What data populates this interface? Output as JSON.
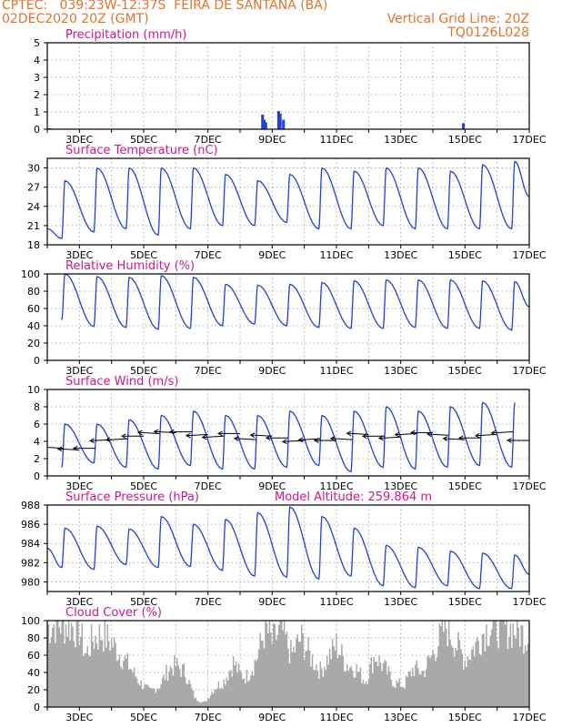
{
  "header": {
    "line1_left": "CPTEC:   039:23W-12:37S  FEIRA DE SANTANA (BA)",
    "line2_left": "02DEC2020 20Z (GMT)",
    "line2_right": "Vertical Grid Line: 20Z",
    "line3_right": "TQ0126L028"
  },
  "colors": {
    "header": "#e8702a",
    "title": "#d6138f",
    "series": "#1f3fe0",
    "cloud": "#a9a9a9",
    "wind_arrow": "#000000",
    "grid": "#9a9a9a"
  },
  "x_tick_labels": [
    "3DEC",
    "5DEC",
    "7DEC",
    "9DEC",
    "11DEC",
    "13DEC",
    "15DEC",
    "17DEC"
  ],
  "chart_data": [
    {
      "id": "precipitation",
      "type": "bar",
      "title": "Precipitation (mm/h)",
      "ylim": [
        0,
        5
      ],
      "yticks": [
        0,
        1,
        2,
        3,
        4,
        5
      ],
      "grid": true,
      "x_unit": "days since 02DEC2020 20Z",
      "bars": [
        {
          "x": 0.05,
          "y": 0.05
        },
        {
          "x": 0.1,
          "y": 0.05
        },
        {
          "x": 6.7,
          "y": 0.85
        },
        {
          "x": 6.75,
          "y": 0.55
        },
        {
          "x": 6.8,
          "y": 0.4
        },
        {
          "x": 7.2,
          "y": 1.05
        },
        {
          "x": 7.25,
          "y": 0.9
        },
        {
          "x": 7.35,
          "y": 0.55
        },
        {
          "x": 12.95,
          "y": 0.35
        }
      ]
    },
    {
      "id": "temperature",
      "type": "line",
      "title": "Surface Temperature (nC)",
      "ylim": [
        18,
        31.5
      ],
      "yticks": [
        18,
        21,
        24,
        27,
        30
      ],
      "grid": true,
      "daily_max": [
        28,
        30,
        30,
        30,
        30,
        29,
        28,
        29,
        30,
        29.5,
        30,
        30,
        29.5,
        30.5,
        31
      ],
      "daily_min": [
        19,
        20,
        20.5,
        19.5,
        20.5,
        21,
        21,
        21.5,
        20.5,
        20.5,
        21,
        20.5,
        20.5,
        20.5,
        20.5,
        20.5
      ],
      "start_value": 20.5,
      "end_value": 25.5
    },
    {
      "id": "humidity",
      "type": "line",
      "title": "Relative Humidity (%)",
      "ylim": [
        0,
        100
      ],
      "yticks": [
        0,
        20,
        40,
        60,
        80,
        100
      ],
      "grid": true,
      "daily_max": [
        100,
        97,
        96,
        98,
        96,
        88,
        87,
        88,
        90,
        92,
        93,
        93,
        93,
        92,
        91,
        92
      ],
      "daily_min": [
        47,
        39,
        38,
        36,
        37,
        40,
        42,
        40,
        38,
        37,
        37,
        38,
        37,
        37,
        35
      ],
      "end_value": 62
    },
    {
      "id": "wind",
      "type": "line",
      "title": "Surface Wind (m/s)",
      "ylim": [
        0,
        10
      ],
      "yticks": [
        0,
        2,
        4,
        6,
        8,
        10
      ],
      "grid": true,
      "daily_max": [
        6,
        6,
        6.5,
        7,
        7.5,
        7,
        7,
        7.5,
        7,
        7.5,
        8,
        7.5,
        8,
        8.5,
        8.5,
        8
      ],
      "daily_min": [
        1,
        1.5,
        1,
        0.8,
        1.2,
        0.8,
        0.8,
        1,
        1.2,
        0.5,
        1,
        0.8,
        1,
        1.2,
        1,
        1
      ],
      "vectors": [
        {
          "x": 0.0,
          "y": 3.5
        },
        {
          "x": 0.5,
          "y": 3.2
        },
        {
          "x": 1.0,
          "y": 3.0
        },
        {
          "x": 1.5,
          "y": 3.2
        },
        {
          "x": 2.0,
          "y": 4.2
        },
        {
          "x": 2.5,
          "y": 4.3
        },
        {
          "x": 3.0,
          "y": 4.6
        },
        {
          "x": 3.5,
          "y": 4.9
        },
        {
          "x": 4.0,
          "y": 5.0
        },
        {
          "x": 4.5,
          "y": 5.1
        },
        {
          "x": 5.0,
          "y": 4.8
        },
        {
          "x": 5.5,
          "y": 4.6
        },
        {
          "x": 6.0,
          "y": 4.9
        },
        {
          "x": 6.5,
          "y": 4.2
        },
        {
          "x": 7.0,
          "y": 4.6
        },
        {
          "x": 7.5,
          "y": 4.4
        },
        {
          "x": 8.0,
          "y": 4.1
        },
        {
          "x": 8.5,
          "y": 4.3
        },
        {
          "x": 9.0,
          "y": 4.1
        },
        {
          "x": 9.5,
          "y": 4.2
        },
        {
          "x": 10.0,
          "y": 4.8
        },
        {
          "x": 10.5,
          "y": 4.6
        },
        {
          "x": 11.0,
          "y": 4.5
        },
        {
          "x": 11.5,
          "y": 4.9
        },
        {
          "x": 12.0,
          "y": 5.0
        },
        {
          "x": 12.5,
          "y": 4.7
        },
        {
          "x": 13.0,
          "y": 4.2
        },
        {
          "x": 13.5,
          "y": 4.4
        },
        {
          "x": 14.0,
          "y": 4.8
        },
        {
          "x": 14.5,
          "y": 5.1
        },
        {
          "x": 15.0,
          "y": 4.1
        }
      ]
    },
    {
      "id": "pressure",
      "type": "line",
      "title": "Surface Pressure (hPa)",
      "subtitle": "Model Altitude: 259.864 m",
      "ylim": [
        979,
        988
      ],
      "yticks": [
        980,
        982,
        984,
        986,
        988
      ],
      "grid": true,
      "daily_max": [
        985.6,
        985.8,
        985.5,
        986.8,
        986,
        986.5,
        987.2,
        987.8,
        986.8,
        985.6,
        983.8,
        983.6,
        983.2,
        983,
        982.8,
        982.6
      ],
      "daily_min": [
        981.5,
        981.3,
        981.8,
        981.5,
        981.6,
        981.2,
        980.6,
        980.5,
        980.3,
        980.6,
        979.6,
        979.4,
        979.6,
        979.3,
        979.3
      ],
      "secondary_peak": 984.2,
      "start_value": 983.5,
      "end_value": 980.8
    },
    {
      "id": "cloud",
      "type": "area",
      "title": "Cloud Cover (%)",
      "ylim": [
        0,
        100
      ],
      "yticks": [
        0,
        20,
        40,
        60,
        80,
        100
      ],
      "grid": true,
      "envelope": [
        {
          "x": 0.0,
          "y": 92
        },
        {
          "x": 0.3,
          "y": 97
        },
        {
          "x": 0.7,
          "y": 95
        },
        {
          "x": 1.0,
          "y": 90
        },
        {
          "x": 1.2,
          "y": 60
        },
        {
          "x": 1.4,
          "y": 78
        },
        {
          "x": 1.7,
          "y": 85
        },
        {
          "x": 2.0,
          "y": 75
        },
        {
          "x": 2.3,
          "y": 60
        },
        {
          "x": 2.6,
          "y": 45
        },
        {
          "x": 2.9,
          "y": 28
        },
        {
          "x": 3.2,
          "y": 18
        },
        {
          "x": 3.5,
          "y": 25
        },
        {
          "x": 3.8,
          "y": 45
        },
        {
          "x": 4.0,
          "y": 48
        },
        {
          "x": 4.3,
          "y": 40
        },
        {
          "x": 4.6,
          "y": 10
        },
        {
          "x": 4.9,
          "y": 5
        },
        {
          "x": 5.2,
          "y": 22
        },
        {
          "x": 5.5,
          "y": 30
        },
        {
          "x": 5.8,
          "y": 52
        },
        {
          "x": 6.0,
          "y": 38
        },
        {
          "x": 6.2,
          "y": 35
        },
        {
          "x": 6.5,
          "y": 55
        },
        {
          "x": 6.8,
          "y": 92
        },
        {
          "x": 7.0,
          "y": 75
        },
        {
          "x": 7.3,
          "y": 90
        },
        {
          "x": 7.6,
          "y": 60
        },
        {
          "x": 7.9,
          "y": 80
        },
        {
          "x": 8.2,
          "y": 58
        },
        {
          "x": 8.5,
          "y": 42
        },
        {
          "x": 8.8,
          "y": 60
        },
        {
          "x": 9.0,
          "y": 72
        },
        {
          "x": 9.3,
          "y": 50
        },
        {
          "x": 9.6,
          "y": 45
        },
        {
          "x": 9.9,
          "y": 30
        },
        {
          "x": 10.2,
          "y": 60
        },
        {
          "x": 10.5,
          "y": 45
        },
        {
          "x": 10.8,
          "y": 28
        },
        {
          "x": 11.1,
          "y": 25
        },
        {
          "x": 11.4,
          "y": 45
        },
        {
          "x": 11.7,
          "y": 40
        },
        {
          "x": 12.0,
          "y": 62
        },
        {
          "x": 12.2,
          "y": 78
        },
        {
          "x": 12.4,
          "y": 95
        },
        {
          "x": 12.7,
          "y": 75
        },
        {
          "x": 13.0,
          "y": 55
        },
        {
          "x": 13.3,
          "y": 70
        },
        {
          "x": 13.6,
          "y": 88
        },
        {
          "x": 13.9,
          "y": 95
        },
        {
          "x": 14.2,
          "y": 92
        },
        {
          "x": 14.5,
          "y": 90
        },
        {
          "x": 14.8,
          "y": 85
        },
        {
          "x": 15.0,
          "y": 80
        }
      ]
    }
  ]
}
